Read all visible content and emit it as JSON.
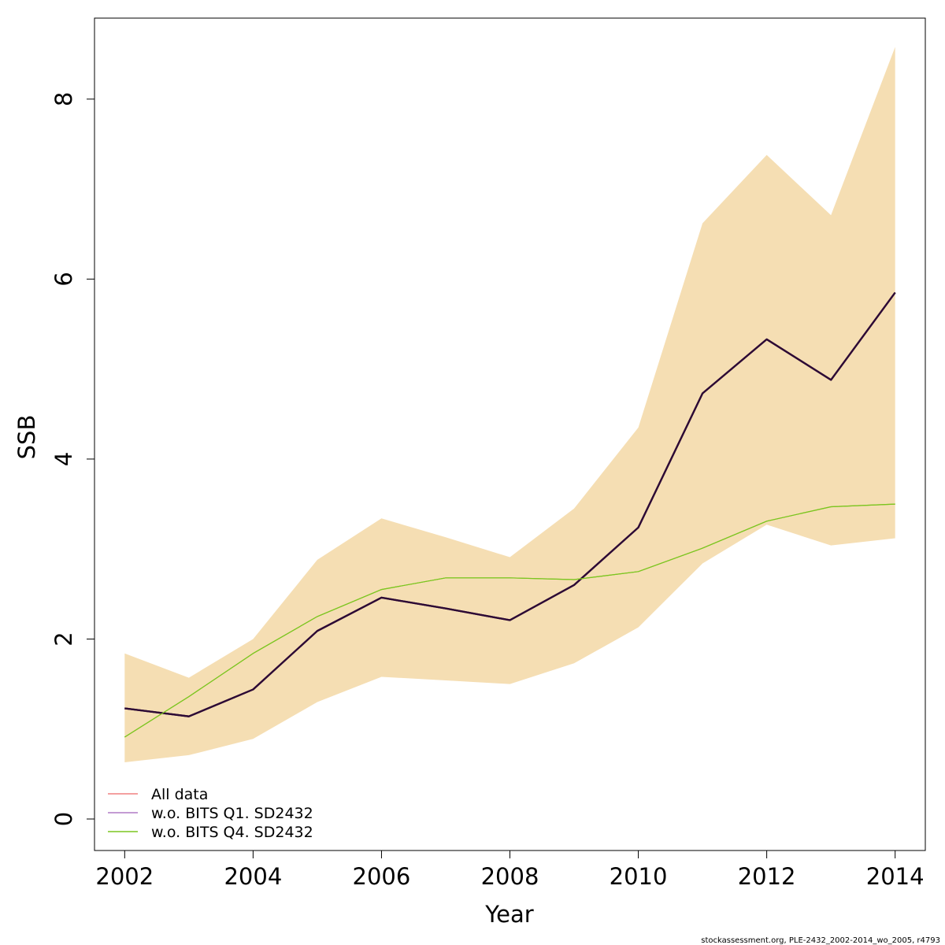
{
  "chart_data": {
    "type": "line",
    "xlabel": "Year",
    "ylabel": "SSB",
    "xlim": [
      2001.53,
      2014.47
    ],
    "ylim": [
      -0.35,
      8.9
    ],
    "x_ticks": [
      2002,
      2004,
      2006,
      2008,
      2010,
      2012,
      2014
    ],
    "y_ticks": [
      0,
      2,
      4,
      6,
      8
    ],
    "x_tick_labels": [
      "2002",
      "2004",
      "2006",
      "2008",
      "2010",
      "2012",
      "2014"
    ],
    "y_tick_labels": [
      "0",
      "2",
      "4",
      "6",
      "8"
    ],
    "x": [
      2002,
      2003,
      2004,
      2005,
      2006,
      2007,
      2008,
      2009,
      2010,
      2011,
      2012,
      2013,
      2014
    ],
    "band": {
      "color": "#f5deb3",
      "lower": [
        0.63,
        0.71,
        0.89,
        1.3,
        1.58,
        1.54,
        1.5,
        1.73,
        2.13,
        2.84,
        3.27,
        3.04,
        3.12
      ],
      "upper": [
        1.84,
        1.57,
        2.0,
        2.88,
        3.34,
        3.13,
        2.91,
        3.45,
        4.35,
        6.62,
        7.38,
        6.71,
        8.58
      ]
    },
    "series": [
      {
        "name": "All data",
        "color": "#2d0a35",
        "values": [
          1.23,
          1.14,
          1.44,
          2.09,
          2.46,
          2.34,
          2.21,
          2.6,
          3.24,
          4.73,
          5.33,
          4.88,
          5.85
        ]
      },
      {
        "name": "w.o. BITS Q1. SD2432",
        "color": "#2d0a35",
        "values": [
          1.23,
          1.14,
          1.44,
          2.09,
          2.46,
          2.34,
          2.21,
          2.6,
          3.24,
          4.73,
          5.33,
          4.88,
          5.85
        ]
      },
      {
        "name": "w.o. BITS Q4. SD2432",
        "color": "#7cc520",
        "values": [
          0.91,
          1.36,
          1.84,
          2.25,
          2.55,
          2.68,
          2.68,
          2.66,
          2.75,
          3.01,
          3.31,
          3.47,
          3.5
        ]
      }
    ],
    "legend": {
      "position": "bottom-left",
      "entries": [
        {
          "label": "All data",
          "color": "#f08080"
        },
        {
          "label": "w.o. BITS Q1. SD2432",
          "color": "#b07cc6"
        },
        {
          "label": "w.o. BITS Q4. SD2432",
          "color": "#7cc520"
        }
      ]
    },
    "grid": false,
    "footer": "stockassessment.org, PLE-2432_2002-2014_wo_2005, r4793"
  }
}
